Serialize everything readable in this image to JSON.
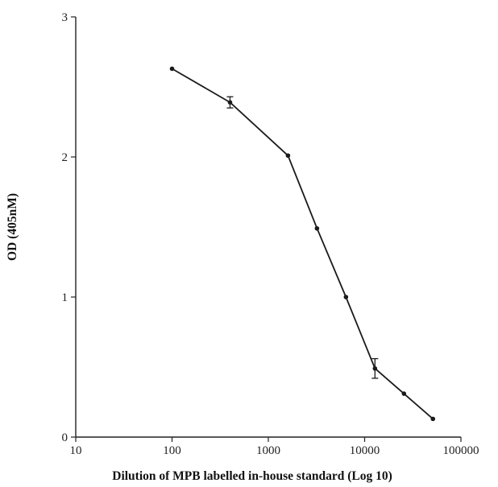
{
  "chart_data": {
    "type": "line",
    "title": "",
    "xlabel": "Dilution of MPB labelled in-house standard (Log 10)",
    "ylabel": "OD (405nM)",
    "x_scale": "log",
    "xlim": [
      10,
      100000
    ],
    "ylim": [
      0,
      3
    ],
    "x_ticks": [
      10,
      100,
      1000,
      10000,
      100000
    ],
    "x_tick_labels": [
      "10",
      "100",
      "1000",
      "10000",
      "100000"
    ],
    "y_ticks": [
      0,
      1,
      2,
      3
    ],
    "y_tick_labels": [
      "0",
      "1",
      "2",
      "3"
    ],
    "grid": false,
    "legend": "none",
    "line_color": "#1a1a1a",
    "series": [
      {
        "x": [
          100,
          400,
          1600,
          3200,
          6400,
          12800,
          25600,
          51200
        ],
        "y": [
          2.63,
          2.39,
          2.01,
          1.49,
          1.0,
          0.49,
          0.31,
          0.13
        ],
        "error": [
          0.01,
          0.04,
          0.01,
          0.01,
          0.01,
          0.07,
          0.01,
          0.01
        ]
      }
    ]
  }
}
